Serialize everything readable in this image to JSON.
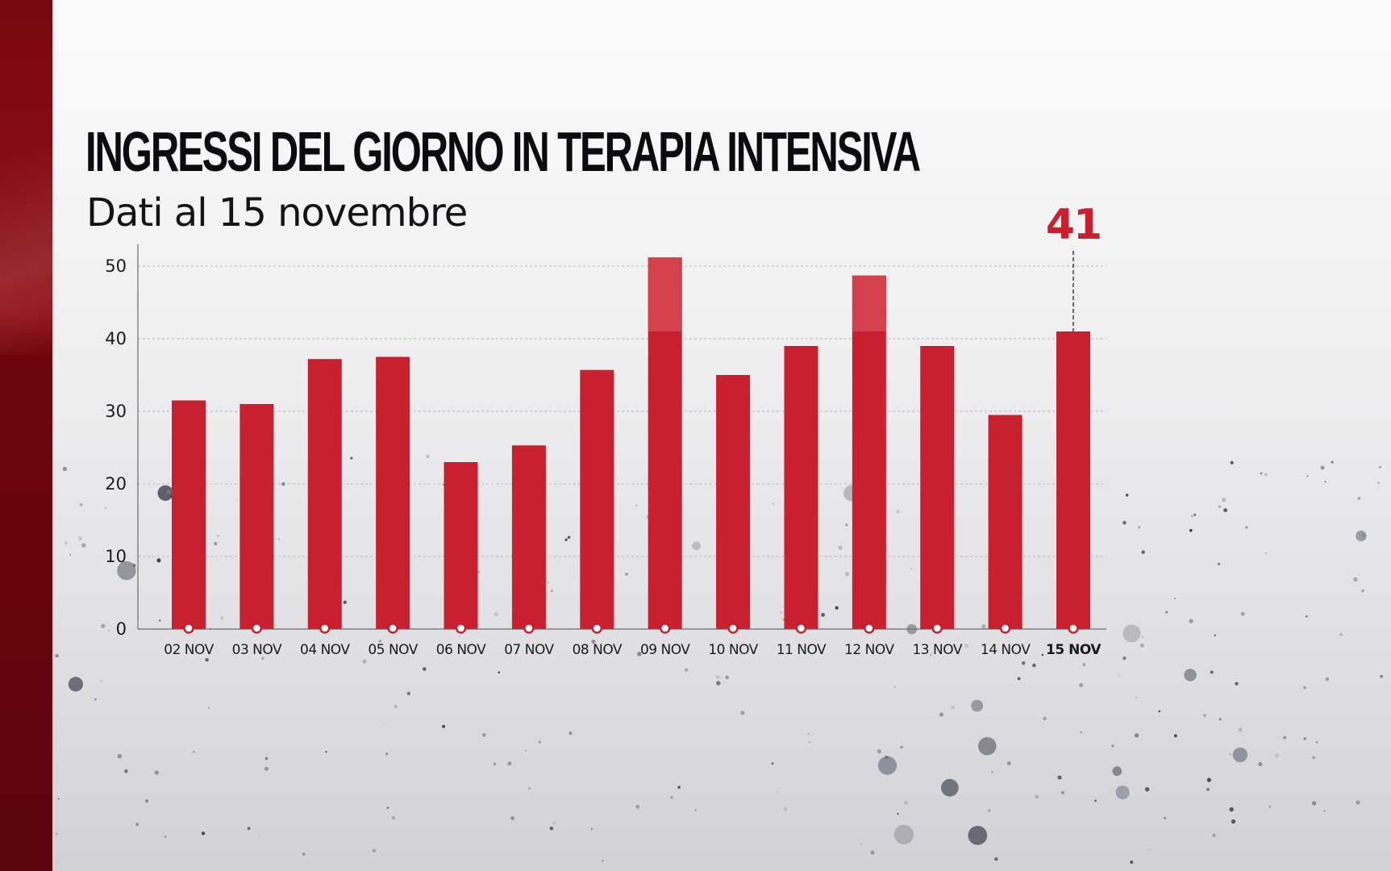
{
  "title": "INGRESSI DEL GIORNO IN TERAPIA INTENSIVA",
  "subtitle": "Dati al 15 novembre",
  "colors": {
    "bar": "#c8202e",
    "bar_highlight": "#d4404b",
    "side_band": "#7a0810",
    "callout": "#c8202e"
  },
  "chart_data": {
    "type": "bar",
    "categories": [
      "02 NOV",
      "03 NOV",
      "04 NOV",
      "05 NOV",
      "06 NOV",
      "07 NOV",
      "08 NOV",
      "09 NOV",
      "10 NOV",
      "11 NOV",
      "12 NOV",
      "13 NOV",
      "14 NOV",
      "15 NOV"
    ],
    "values": [
      31.5,
      31,
      37.2,
      37.5,
      23,
      25.3,
      35.7,
      51.2,
      35,
      39,
      48.7,
      39,
      29.5,
      41
    ],
    "yticks": [
      0,
      10,
      20,
      30,
      40,
      50
    ],
    "ylim": [
      0,
      53
    ],
    "grid": true,
    "highlight_category": "15 NOV",
    "callout_value": "41",
    "xlabel": "",
    "ylabel": ""
  }
}
